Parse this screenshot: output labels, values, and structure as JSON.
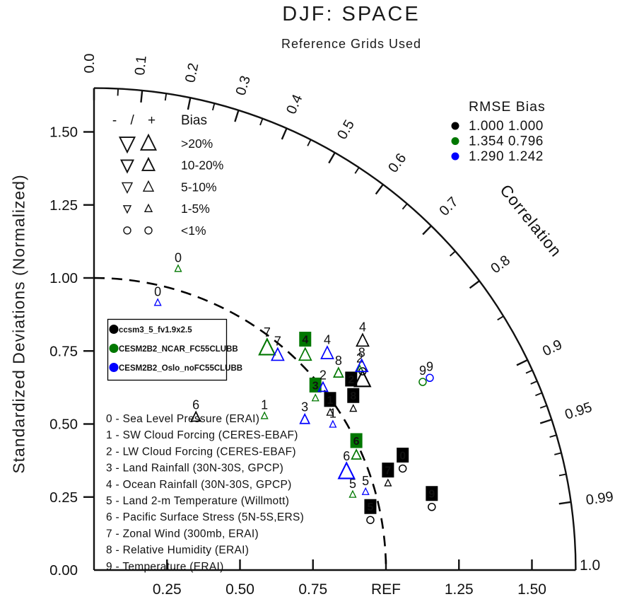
{
  "title": "DJF: SPACE",
  "subtitle": "Reference Grids Used",
  "axes": {
    "std_axis_label": "Standardized Deviations (Normalized)",
    "x_tick_labels": [
      "0.25",
      "0.50",
      "0.75",
      "REF",
      "1.25",
      "1.50"
    ],
    "y_tick_labels": [
      "0.00",
      "0.25",
      "0.50",
      "0.75",
      "1.00",
      "1.25",
      "1.50"
    ],
    "correlation_label": "Correlation",
    "correlation_tick_values": [
      0,
      0.1,
      0.2,
      0.3,
      0.4,
      0.5,
      0.6,
      0.7,
      0.8,
      0.9,
      0.95,
      0.99,
      1.0
    ],
    "correlation_tick_labels": [
      "0.0",
      "0.1",
      "0.2",
      "0.3",
      "0.4",
      "0.5",
      "0.6",
      "0.7",
      "0.8",
      "0.9",
      "0.95",
      "0.99",
      "1.0"
    ]
  },
  "bias_legend": {
    "header_signs": "- / +",
    "header": "Bias",
    "rows": [
      {
        "category": ">20%"
      },
      {
        "category": "10-20%"
      },
      {
        "category": "5-10%"
      },
      {
        "category": "1-5%"
      },
      {
        "category": "<1%"
      }
    ]
  },
  "rmse_legend": {
    "col1": "RMSE",
    "col2": "Bias",
    "rows": [
      {
        "color": "#000000",
        "rmse": "1.000",
        "bias": "1.000"
      },
      {
        "color": "#007700",
        "rmse": "1.354",
        "bias": "0.796"
      },
      {
        "color": "#0000ff",
        "rmse": "1.290",
        "bias": "1.242"
      }
    ]
  },
  "model_legend": [
    {
      "name": "ccsm3_5_fv1.9x2.5",
      "color": "#000000"
    },
    {
      "name": "CESM2B2_NCAR_FC55CLUBB",
      "color": "#007700"
    },
    {
      "name": "CESM2B2_Oslo_noFC55CLUBB",
      "color": "#0000ff"
    }
  ],
  "variables": [
    "0 - Sea Level Pressure (ERAI)",
    "1 - SW Cloud Forcing (CERES-EBAF)",
    "2 - LW Cloud Forcing (CERES-EBAF)",
    "3 - Land Rainfall (30N-30S, GPCP)",
    "4 - Ocean Rainfall (30N-30S, GPCP)",
    "5 - Land 2-m Temperature (Willmott)",
    "6 - Pacific Surface Stress (5N-5S,ERS)",
    "7 - Zonal Wind (300mb, ERAI)",
    "8 - Relative Humidity (ERAI)",
    "9 - Temperature (ERAI)"
  ],
  "chart_data": {
    "type": "taylor",
    "title": "DJF: SPACE",
    "subtitle": "Reference Grids Used",
    "radial_axis": "Standardized Deviations (Normalized)",
    "angular_axis": "Correlation",
    "radial_max": 1.65,
    "reference_std": 1.0,
    "series": [
      {
        "name": "ccsm3_5_fv1.9x2.5",
        "color": "#000000",
        "rmse": "1.000",
        "bias_stat": "1.000",
        "points": [
          {
            "var": "0",
            "std": 1.113,
            "corr": 0.95,
            "bias": "<1%",
            "boxed": true
          },
          {
            "var": "1",
            "std": 0.972,
            "corr": 0.832,
            "bias": "1-5%",
            "boxed": true
          },
          {
            "var": "2",
            "std": 1.127,
            "corr": 0.816,
            "bias": ">20%",
            "boxed": true,
            "label_dx": -16,
            "label_dy": 24
          },
          {
            "var": "3",
            "std": 1.144,
            "corr": 0.804,
            "bias": "<1%",
            "label_hidden": true
          },
          {
            "var": "4",
            "std": 1.209,
            "corr": 0.761,
            "bias": "10-20%"
          },
          {
            "var": "5",
            "std": 0.962,
            "corr": 0.984,
            "bias": "<1%",
            "boxed": true
          },
          {
            "var": "6",
            "std": 0.629,
            "corr": 0.555,
            "bias": "5-10%"
          },
          {
            "var": "7",
            "std": 1.05,
            "corr": 0.959,
            "bias": "1-5%",
            "boxed": true
          },
          {
            "var": "8",
            "std": 1.046,
            "corr": 0.849,
            "bias": "1-5%",
            "boxed": true
          },
          {
            "var": "9",
            "std": 1.177,
            "corr": 0.983,
            "bias": "<1%",
            "boxed": true
          }
        ]
      },
      {
        "name": "CESM2B2_NCAR_FC55CLUBB",
        "color": "#007700",
        "rmse": "1.354",
        "bias_stat": "0.796",
        "points": [
          {
            "var": "0",
            "std": 1.071,
            "corr": 0.269,
            "bias": "1-5%"
          },
          {
            "var": "1",
            "std": 0.787,
            "corr": 0.742,
            "bias": "1-5%"
          },
          {
            "var": "2",
            "std": 1.141,
            "corr": 0.798,
            "bias": "1-5%"
          },
          {
            "var": "3",
            "std": 0.96,
            "corr": 0.79,
            "bias": "1-5%",
            "boxed": true
          },
          {
            "var": "4",
            "std": 1.032,
            "corr": 0.701,
            "bias": "10-20%",
            "boxed": true
          },
          {
            "var": "5",
            "std": 0.923,
            "corr": 0.96,
            "bias": "1-5%"
          },
          {
            "var": "6",
            "std": 0.981,
            "corr": 0.916,
            "bias": "5-10%",
            "boxed": true
          },
          {
            "var": "7",
            "std": 0.964,
            "corr": 0.615,
            "bias": ">20%"
          },
          {
            "var": "8",
            "std": 1.075,
            "corr": 0.779,
            "bias": "5-10%"
          },
          {
            "var": "9",
            "std": 1.297,
            "corr": 0.868,
            "bias": "<1%"
          }
        ]
      },
      {
        "name": "CESM2B2_Oslo_noFC55CLUBB",
        "color": "#0000ff",
        "rmse": "1.290",
        "bias_stat": "1.242",
        "points": [
          {
            "var": "0",
            "std": 0.941,
            "corr": 0.232,
            "bias": "1-5%"
          },
          {
            "var": "1",
            "std": 0.958,
            "corr": 0.854,
            "bias": "1-5%"
          },
          {
            "var": "2",
            "std": 1.003,
            "corr": 0.782,
            "bias": "5-10%"
          },
          {
            "var": "3",
            "std": 0.887,
            "corr": 0.814,
            "bias": "5-10%"
          },
          {
            "var": "4",
            "std": 1.09,
            "corr": 0.733,
            "bias": "10-20%"
          },
          {
            "var": "5",
            "std": 0.968,
            "corr": 0.961,
            "bias": "1-5%"
          },
          {
            "var": "6",
            "std": 0.928,
            "corr": 0.932,
            "bias": ">20%"
          },
          {
            "var": "7",
            "std": 0.968,
            "corr": 0.65,
            "bias": "10-20%"
          },
          {
            "var": "8",
            "std": 1.152,
            "corr": 0.796,
            "bias": "10-20%"
          },
          {
            "var": "9",
            "std": 1.325,
            "corr": 0.868,
            "bias": "<1%"
          }
        ]
      }
    ]
  }
}
